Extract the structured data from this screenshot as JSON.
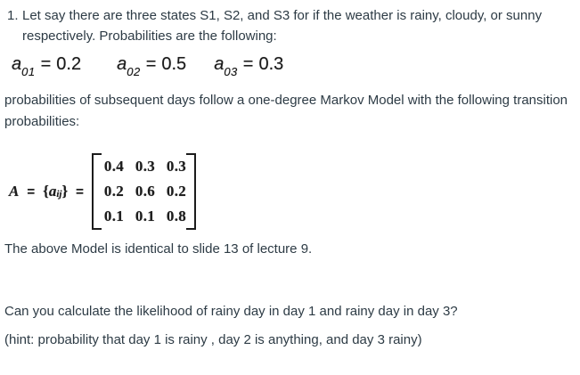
{
  "colors": {
    "page_background": "#ffffff",
    "body_text": "#2d3b45",
    "formula_text": "#1a1a1a"
  },
  "problem": {
    "number": "1.",
    "intro_lines": [
      "Let say there are three states S1, S2, and S3 for if the weather is rainy, cloudy, or sunny",
      "respectively. Probabilities are the following:"
    ]
  },
  "initial_probabilities": [
    {
      "var": "a",
      "sub": "01",
      "eq": "=",
      "value": "0.2"
    },
    {
      "var": "a",
      "sub": "02",
      "eq": "=",
      "value": "0.5"
    },
    {
      "var": "a",
      "sub": "03",
      "eq": "=",
      "value": "0.3"
    }
  ],
  "transition_paragraph_lines": [
    "probabilities of subsequent days follow a one-degree Markov Model with the following transition",
    "probabilities:"
  ],
  "transition_matrix": {
    "name": "A",
    "eq1": "=",
    "brace_open": "{",
    "entry_var": "a",
    "entry_sub": "ij",
    "brace_close": "}",
    "eq2": "=",
    "rows": [
      [
        "0.4",
        "0.3",
        "0.3"
      ],
      [
        "0.2",
        "0.6",
        "0.2"
      ],
      [
        "0.1",
        "0.1",
        "0.8"
      ]
    ]
  },
  "note": "The above Model is identical to slide 13 of lecture 9.",
  "question": "Can you calculate the likelihood of rainy day in day 1 and rainy day in day 3?",
  "hint": "(hint: probability that day 1 is rainy , day 2 is anything, and day 3 rainy)"
}
